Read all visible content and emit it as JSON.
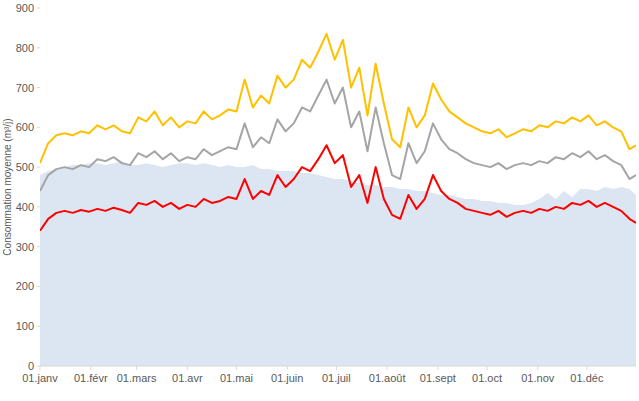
{
  "chart_data": {
    "type": "line",
    "y_label": "Consommation moyenne (m³/j)",
    "x": [
      1,
      6,
      11,
      16,
      21,
      26,
      31,
      36,
      41,
      46,
      51,
      56,
      61,
      66,
      71,
      76,
      81,
      86,
      91,
      96,
      101,
      106,
      111,
      116,
      121,
      126,
      131,
      136,
      141,
      146,
      151,
      156,
      161,
      166,
      171,
      176,
      181,
      186,
      191,
      196,
      201,
      206,
      211,
      216,
      221,
      226,
      231,
      236,
      241,
      246,
      251,
      256,
      261,
      266,
      271,
      276,
      281,
      286,
      291,
      296,
      301,
      306,
      311,
      316,
      321,
      326,
      331,
      336,
      341,
      346,
      351,
      356,
      361,
      365
    ],
    "xlim": [
      1,
      365
    ],
    "xticks": [
      {
        "value": 1,
        "label": "01.janv"
      },
      {
        "value": 32,
        "label": "01.févr"
      },
      {
        "value": 60,
        "label": "01.mars"
      },
      {
        "value": 91,
        "label": "01.avr"
      },
      {
        "value": 121,
        "label": "01.mai"
      },
      {
        "value": 152,
        "label": "01.juin"
      },
      {
        "value": 182,
        "label": "01.juil"
      },
      {
        "value": 213,
        "label": "01.août"
      },
      {
        "value": 244,
        "label": "01.sept"
      },
      {
        "value": 274,
        "label": "01.oct"
      },
      {
        "value": 305,
        "label": "01.nov"
      },
      {
        "value": 335,
        "label": "01.déc"
      }
    ],
    "ylim": [
      0,
      900
    ],
    "yticks": [
      0,
      100,
      200,
      300,
      400,
      500,
      600,
      700,
      800,
      900
    ],
    "grid": false,
    "series": [
      {
        "type": "area",
        "color": "#dce6f2",
        "values": [
          480,
          490,
          495,
          500,
          505,
          505,
          510,
          510,
          505,
          510,
          515,
          505,
          505,
          510,
          505,
          500,
          505,
          510,
          510,
          505,
          510,
          505,
          500,
          505,
          500,
          500,
          505,
          495,
          495,
          490,
          490,
          490,
          485,
          485,
          480,
          475,
          470,
          470,
          465,
          460,
          455,
          455,
          450,
          450,
          445,
          445,
          440,
          440,
          435,
          430,
          430,
          425,
          420,
          420,
          415,
          415,
          410,
          410,
          405,
          405,
          410,
          420,
          435,
          420,
          440,
          425,
          445,
          445,
          440,
          450,
          445,
          450,
          445,
          430
        ]
      },
      {
        "type": "line",
        "color": "#ffc000",
        "values": [
          510,
          560,
          580,
          585,
          580,
          590,
          585,
          605,
          595,
          605,
          590,
          585,
          625,
          615,
          640,
          605,
          625,
          600,
          615,
          610,
          640,
          620,
          630,
          645,
          640,
          720,
          650,
          680,
          660,
          730,
          700,
          720,
          770,
          750,
          790,
          835,
          770,
          820,
          700,
          750,
          630,
          760,
          660,
          570,
          550,
          650,
          600,
          630,
          710,
          670,
          640,
          625,
          610,
          600,
          590,
          585,
          595,
          575,
          585,
          595,
          590,
          605,
          600,
          615,
          610,
          625,
          615,
          630,
          605,
          615,
          600,
          590,
          545,
          555
        ]
      },
      {
        "type": "line",
        "color": "#a5a5a5",
        "values": [
          440,
          480,
          495,
          500,
          495,
          505,
          500,
          520,
          515,
          525,
          510,
          505,
          535,
          525,
          540,
          520,
          535,
          515,
          525,
          520,
          545,
          530,
          540,
          550,
          545,
          610,
          550,
          575,
          560,
          620,
          590,
          610,
          650,
          640,
          680,
          720,
          660,
          700,
          600,
          640,
          540,
          650,
          560,
          480,
          470,
          560,
          510,
          540,
          610,
          570,
          545,
          535,
          520,
          510,
          505,
          500,
          510,
          495,
          505,
          510,
          505,
          515,
          510,
          525,
          520,
          535,
          525,
          540,
          520,
          530,
          515,
          505,
          470,
          480
        ]
      },
      {
        "type": "line",
        "color": "#ff0000",
        "values": [
          340,
          370,
          385,
          390,
          385,
          392,
          388,
          395,
          390,
          398,
          392,
          385,
          410,
          405,
          415,
          400,
          410,
          395,
          405,
          400,
          420,
          410,
          415,
          425,
          420,
          470,
          420,
          440,
          430,
          480,
          450,
          470,
          500,
          490,
          520,
          555,
          510,
          530,
          450,
          480,
          410,
          500,
          420,
          380,
          370,
          430,
          395,
          420,
          480,
          440,
          420,
          410,
          395,
          390,
          385,
          380,
          390,
          375,
          385,
          390,
          385,
          395,
          390,
          400,
          395,
          410,
          405,
          415,
          400,
          410,
          400,
          390,
          370,
          360
        ]
      }
    ]
  }
}
